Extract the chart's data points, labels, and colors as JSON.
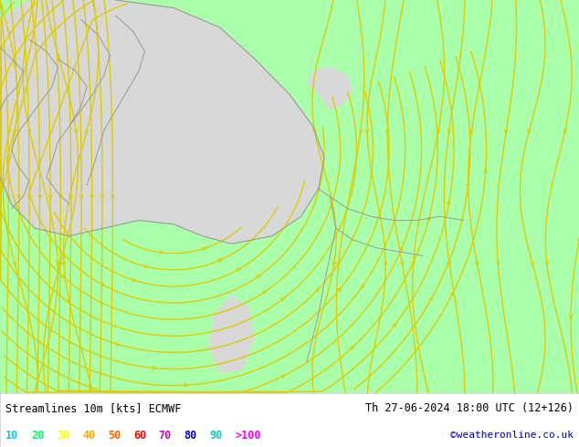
{
  "bg_color": "#aaffaa",
  "gray_region_color": "#d8d8d8",
  "streamline_color": "#ddcc00",
  "border_color": "#999999",
  "title_left": "Streamlines 10m [kts] ECMWF",
  "title_right": "Th 27-06-2024 18:00 UTC (12+126)",
  "credit": "©weatheronline.co.uk",
  "legend_values": [
    "10",
    "20",
    "30",
    "40",
    "50",
    "60",
    "70",
    "80",
    "90",
    ">100"
  ],
  "legend_colors": [
    "#00ccff",
    "#00ff66",
    "#ffff00",
    "#ffaa00",
    "#ff6600",
    "#ff0000",
    "#cc00cc",
    "#0000ff",
    "#00cccc",
    "#ff00ff"
  ],
  "figsize": [
    6.34,
    4.9
  ],
  "dpi": 100,
  "bottom_bar_height": 0.12
}
